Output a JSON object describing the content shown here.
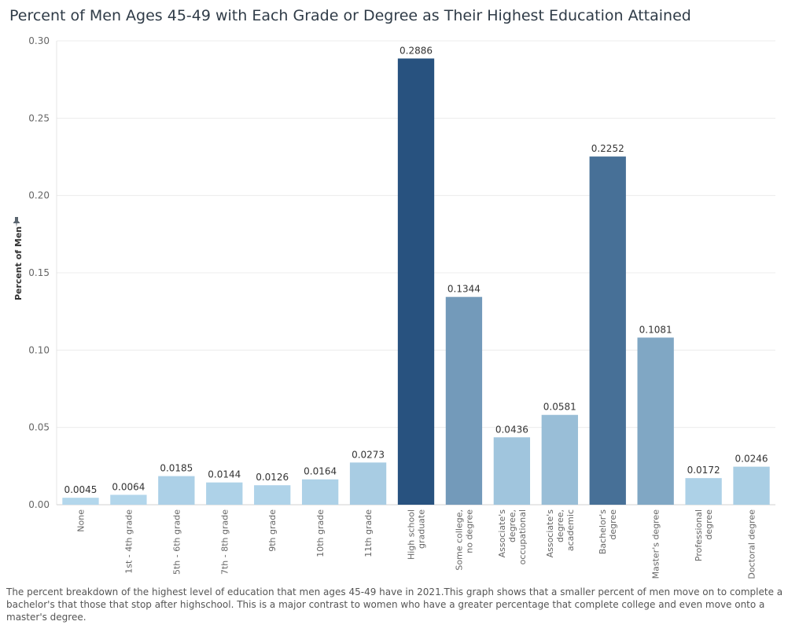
{
  "chart_data": {
    "type": "bar",
    "title": "Percent of Men Ages 45-49 with Each Grade or Degree as Their Highest Education Attained",
    "ylabel": "Percent of Men",
    "xlabel": "",
    "ylim": [
      0,
      0.3
    ],
    "yticks": [
      "0.00",
      "0.05",
      "0.10",
      "0.15",
      "0.20",
      "0.25",
      "0.30"
    ],
    "grid": true,
    "color_scale": [
      "#b3d7ec",
      "#28527f"
    ],
    "categories": [
      [
        "None"
      ],
      [
        "1st - 4th grade"
      ],
      [
        "5th - 6th grade"
      ],
      [
        "7th - 8th grade"
      ],
      [
        "9th grade"
      ],
      [
        "10th grade"
      ],
      [
        "11th grade"
      ],
      [
        "High school",
        "graduate"
      ],
      [
        "Some college,",
        "no degree"
      ],
      [
        "Associate's",
        "degree,",
        "occupational"
      ],
      [
        "Associate's",
        "degree,",
        "academic"
      ],
      [
        "Bachelor's",
        "degree"
      ],
      [
        "Master's degree"
      ],
      [
        "Professional",
        "degree"
      ],
      [
        "Doctoral degree"
      ]
    ],
    "values": [
      0.0045,
      0.0064,
      0.0185,
      0.0144,
      0.0126,
      0.0164,
      0.0273,
      0.2886,
      0.1344,
      0.0436,
      0.0581,
      0.2252,
      0.1081,
      0.0172,
      0.0246
    ],
    "value_labels": [
      "0.0045",
      "0.0064",
      "0.0185",
      "0.0144",
      "0.0126",
      "0.0164",
      "0.0273",
      "0.2886",
      "0.1344",
      "0.0436",
      "0.0581",
      "0.2252",
      "0.1081",
      "0.0172",
      "0.0246"
    ]
  },
  "caption": "The percent breakdown of the highest level of education that men ages 45-49 have in 2021.This graph shows that a smaller percent of men move on to complete a bachelor's that those that stop after highschool. This is a major contrast to women who have a greater percentage that complete college and even move onto a master's degree.",
  "icons": {
    "axis_pin": "pin-icon"
  }
}
